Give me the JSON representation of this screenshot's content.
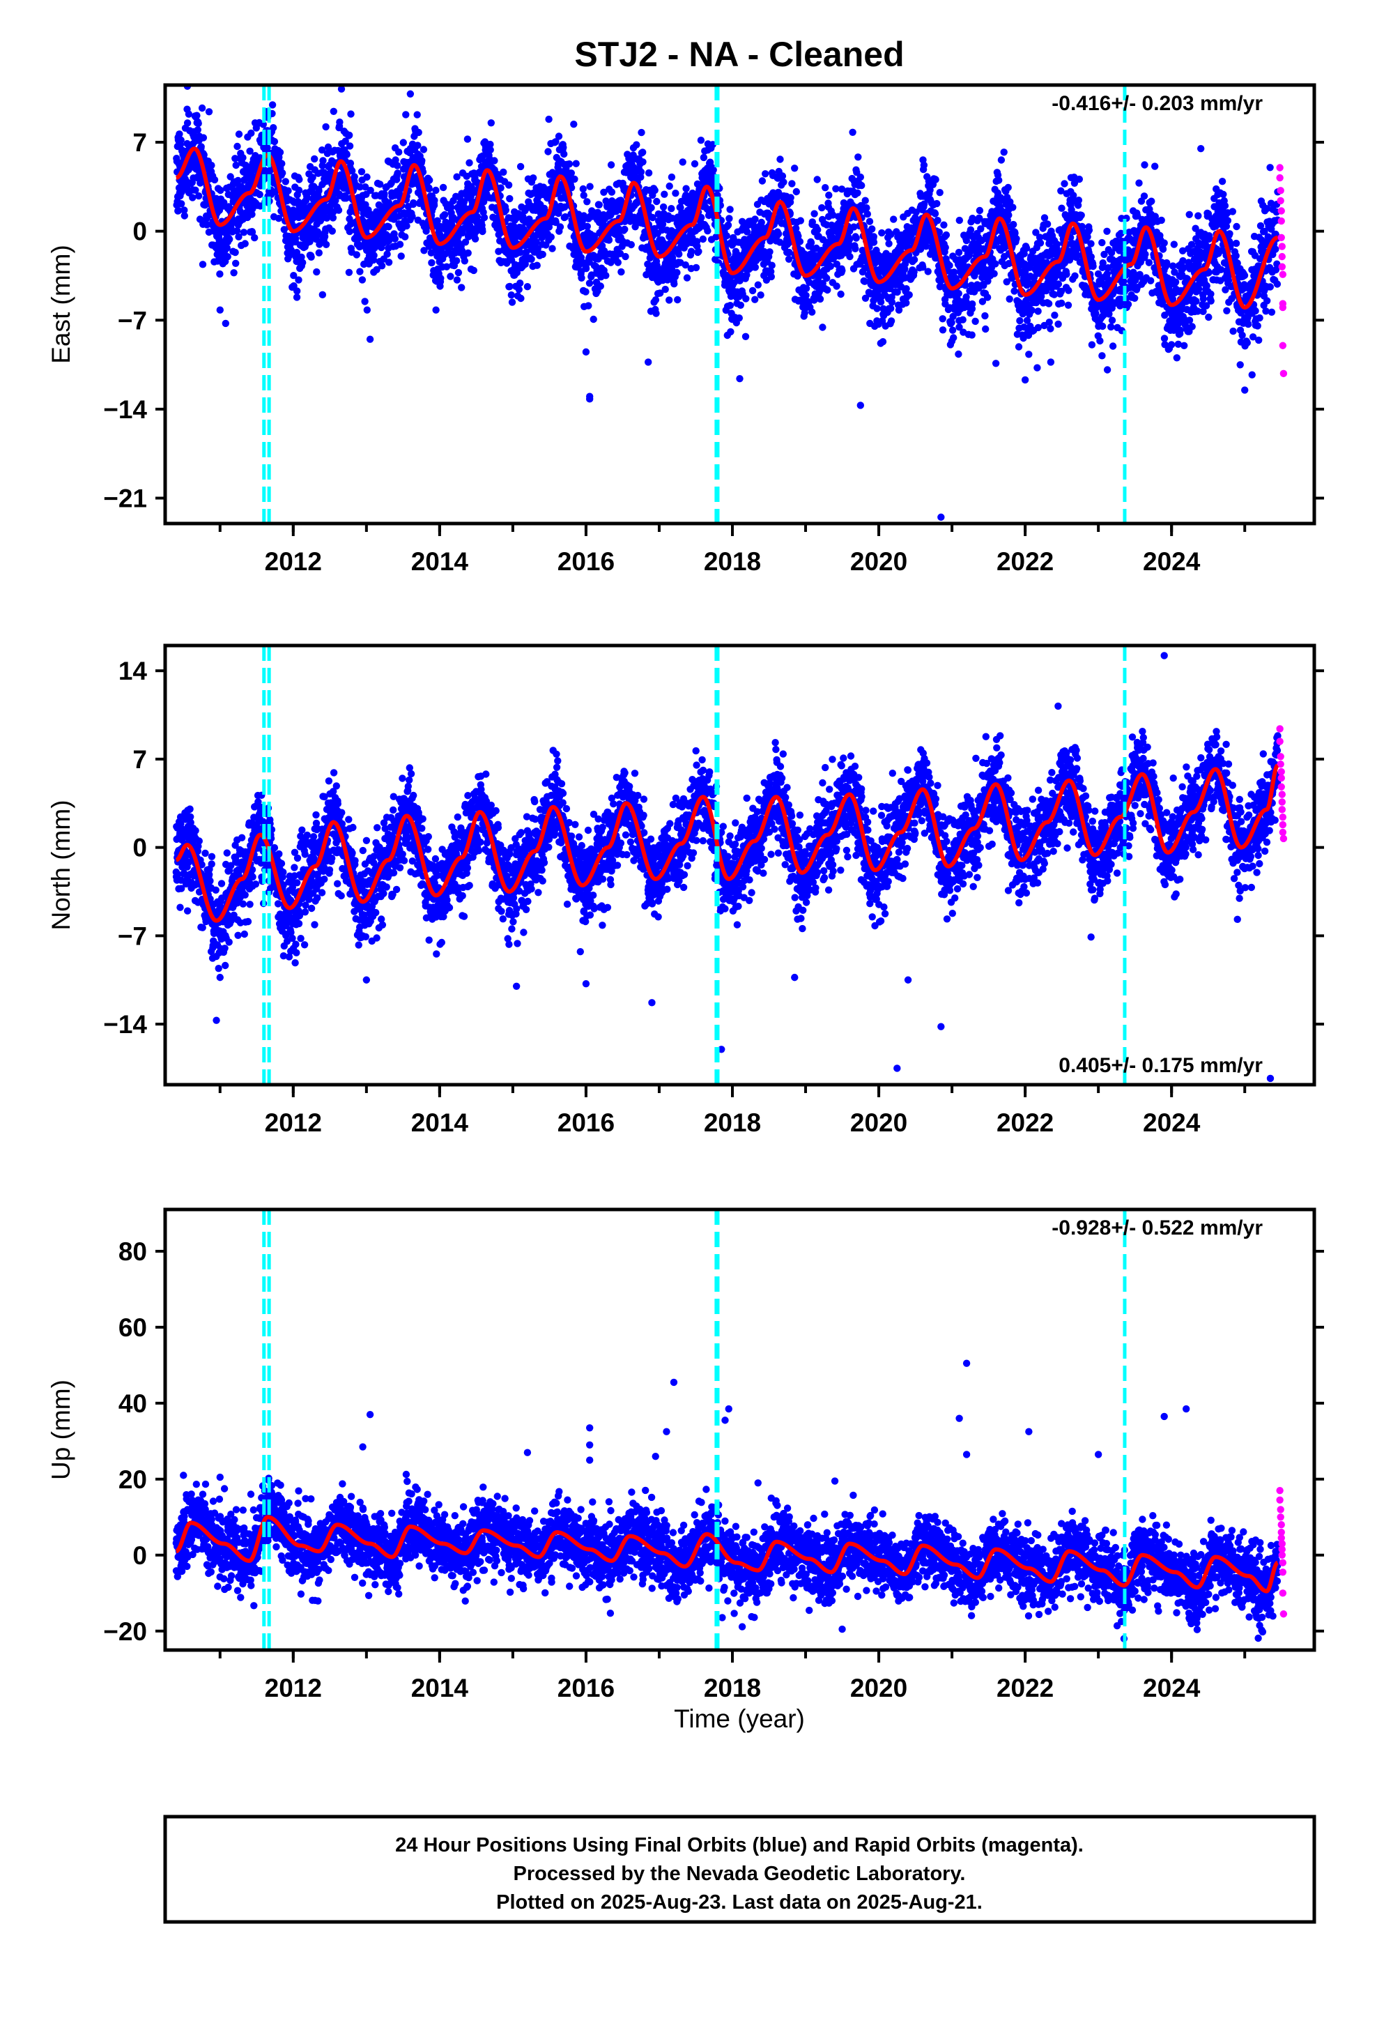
{
  "title": "STJ2  - NA - Cleaned",
  "xlabel": "Time (year)",
  "x_ticks": [
    2012,
    2014,
    2016,
    2018,
    2020,
    2022,
    2024
  ],
  "x_range": [
    2010.25,
    2025.95
  ],
  "colors": {
    "final_orbits": "#0000ff",
    "rapid_orbits": "#ff00ff",
    "model": "#ff0000",
    "offsets": "#00ffff",
    "frame": "#000000"
  },
  "footer": {
    "line1": "24 Hour Positions Using Final Orbits (blue) and Rapid Orbits (magenta).",
    "line2": "Processed by the Nevada Geodetic Laboratory.",
    "line3": "Plotted on 2025-Aug-23. Last data on 2025-Aug-21."
  },
  "chart_data": [
    {
      "type": "scatter",
      "component": "east",
      "ylabel": "East (mm)",
      "y_ticks": [
        7,
        0,
        -7,
        -14,
        -21
      ],
      "ylim": [
        -23,
        11.5
      ],
      "rate_label": "-0.416+/- 0.203 mm/yr",
      "rate_position": "top-right",
      "grid": false,
      "offset_lines": [
        2011.6,
        2011.67,
        2017.78,
        2017.8,
        2023.36
      ],
      "series": [
        {
          "name": "Final Orbits",
          "x_start": 2010.4,
          "x_end": 2025.45,
          "model_knots": [
            [
              2010.4,
              4.2
            ],
            [
              2010.65,
              6.5
            ],
            [
              2011.0,
              0.5
            ],
            [
              2011.4,
              3.0
            ],
            [
              2011.65,
              6.0
            ],
            [
              2012.0,
              0.0
            ],
            [
              2012.45,
              2.5
            ],
            [
              2012.65,
              5.5
            ],
            [
              2013.0,
              -0.5
            ],
            [
              2013.45,
              2.0
            ],
            [
              2013.65,
              5.2
            ],
            [
              2014.0,
              -1.0
            ],
            [
              2014.45,
              1.5
            ],
            [
              2014.65,
              4.8
            ],
            [
              2015.0,
              -1.3
            ],
            [
              2015.45,
              1.0
            ],
            [
              2015.65,
              4.3
            ],
            [
              2016.0,
              -1.6
            ],
            [
              2016.45,
              0.8
            ],
            [
              2016.65,
              3.8
            ],
            [
              2017.0,
              -2.0
            ],
            [
              2017.45,
              0.5
            ],
            [
              2017.65,
              3.5
            ],
            [
              2018.0,
              -3.3
            ],
            [
              2018.45,
              -0.5
            ],
            [
              2018.65,
              2.3
            ],
            [
              2019.0,
              -3.5
            ],
            [
              2019.45,
              -1.0
            ],
            [
              2019.65,
              1.8
            ],
            [
              2020.0,
              -4.0
            ],
            [
              2020.45,
              -1.5
            ],
            [
              2020.65,
              1.3
            ],
            [
              2021.0,
              -4.5
            ],
            [
              2021.45,
              -2.0
            ],
            [
              2021.65,
              1.0
            ],
            [
              2022.0,
              -5.0
            ],
            [
              2022.45,
              -2.4
            ],
            [
              2022.65,
              0.6
            ],
            [
              2023.0,
              -5.4
            ],
            [
              2023.45,
              -2.6
            ],
            [
              2023.65,
              0.3
            ],
            [
              2024.0,
              -5.8
            ],
            [
              2024.45,
              -3.0
            ],
            [
              2024.65,
              0.0
            ],
            [
              2025.0,
              -6.0
            ],
            [
              2025.45,
              -0.5
            ]
          ],
          "scatter_sd": 1.9
        },
        {
          "name": "Rapid Orbits",
          "points": [
            [
              2025.48,
              5.0
            ],
            [
              2025.48,
              4.2
            ],
            [
              2025.49,
              3.2
            ],
            [
              2025.49,
              2.4
            ],
            [
              2025.5,
              1.6
            ],
            [
              2025.5,
              0.8
            ],
            [
              2025.5,
              -0.5
            ],
            [
              2025.51,
              -1.2
            ],
            [
              2025.51,
              -2.0
            ],
            [
              2025.51,
              -2.8
            ],
            [
              2025.52,
              -3.4
            ],
            [
              2025.52,
              -5.7
            ],
            [
              2025.52,
              -6.0
            ],
            [
              2025.52,
              -9.0
            ],
            [
              2025.53,
              -11.2
            ]
          ]
        }
      ],
      "outliers": [
        [
          2010.55,
          9.6
        ],
        [
          2010.85,
          9.4
        ],
        [
          2011.0,
          -6.2
        ],
        [
          2012.05,
          -5.2
        ],
        [
          2012.4,
          -5.0
        ],
        [
          2013.05,
          -8.5
        ],
        [
          2013.6,
          10.8
        ],
        [
          2013.95,
          -6.2
        ],
        [
          2016.0,
          -9.5
        ],
        [
          2016.05,
          -13.0
        ],
        [
          2016.05,
          -13.2
        ],
        [
          2016.85,
          -10.3
        ],
        [
          2018.1,
          -11.6
        ],
        [
          2019.75,
          -13.7
        ],
        [
          2020.85,
          -22.5
        ],
        [
          2021.6,
          -10.4
        ],
        [
          2022.0,
          -11.7
        ],
        [
          2022.35,
          -10.3
        ],
        [
          2023.05,
          -9.8
        ],
        [
          2024.4,
          6.5
        ],
        [
          2025.0,
          -12.5
        ],
        [
          2025.1,
          -11.3
        ]
      ]
    },
    {
      "type": "scatter",
      "component": "north",
      "ylabel": "North (mm)",
      "y_ticks": [
        14,
        7,
        0,
        -7,
        -14
      ],
      "ylim": [
        -18.8,
        16.0
      ],
      "rate_label": "0.405+/- 0.175 mm/yr",
      "rate_position": "bottom-right",
      "grid": false,
      "offset_lines": [
        2011.6,
        2011.67,
        2017.78,
        2017.8,
        2023.36
      ],
      "series": [
        {
          "name": "Final Orbits",
          "x_start": 2010.4,
          "x_end": 2025.45,
          "model_knots": [
            [
              2010.4,
              -1.0
            ],
            [
              2010.55,
              0.2
            ],
            [
              2010.95,
              -5.8
            ],
            [
              2011.3,
              -2.5
            ],
            [
              2011.55,
              1.0
            ],
            [
              2011.95,
              -4.8
            ],
            [
              2012.3,
              -1.5
            ],
            [
              2012.55,
              2.0
            ],
            [
              2012.95,
              -4.3
            ],
            [
              2013.3,
              -1.0
            ],
            [
              2013.55,
              2.5
            ],
            [
              2013.95,
              -3.8
            ],
            [
              2014.3,
              -0.8
            ],
            [
              2014.55,
              2.8
            ],
            [
              2014.95,
              -3.5
            ],
            [
              2015.3,
              -0.3
            ],
            [
              2015.55,
              3.2
            ],
            [
              2015.95,
              -3.0
            ],
            [
              2016.3,
              0.0
            ],
            [
              2016.55,
              3.5
            ],
            [
              2016.95,
              -2.5
            ],
            [
              2017.3,
              0.3
            ],
            [
              2017.6,
              4.0
            ],
            [
              2017.95,
              -2.5
            ],
            [
              2018.3,
              0.5
            ],
            [
              2018.6,
              4.0
            ],
            [
              2018.95,
              -2.0
            ],
            [
              2019.3,
              1.0
            ],
            [
              2019.6,
              4.2
            ],
            [
              2019.95,
              -1.8
            ],
            [
              2020.3,
              1.2
            ],
            [
              2020.6,
              4.6
            ],
            [
              2020.95,
              -1.5
            ],
            [
              2021.3,
              1.5
            ],
            [
              2021.6,
              5.0
            ],
            [
              2021.95,
              -1.0
            ],
            [
              2022.3,
              2.0
            ],
            [
              2022.6,
              5.3
            ],
            [
              2022.95,
              -0.6
            ],
            [
              2023.3,
              2.4
            ],
            [
              2023.6,
              5.8
            ],
            [
              2023.95,
              -0.4
            ],
            [
              2024.3,
              2.8
            ],
            [
              2024.6,
              6.2
            ],
            [
              2024.95,
              0.0
            ],
            [
              2025.3,
              3.0
            ],
            [
              2025.45,
              6.5
            ]
          ],
          "scatter_sd": 1.7
        },
        {
          "name": "Rapid Orbits",
          "points": [
            [
              2025.48,
              9.4
            ],
            [
              2025.48,
              8.4
            ],
            [
              2025.49,
              7.2
            ],
            [
              2025.49,
              6.6
            ],
            [
              2025.5,
              6.0
            ],
            [
              2025.5,
              5.5
            ],
            [
              2025.5,
              4.8
            ],
            [
              2025.51,
              4.2
            ],
            [
              2025.51,
              3.6
            ],
            [
              2025.51,
              3.0
            ],
            [
              2025.52,
              2.4
            ],
            [
              2025.52,
              1.8
            ],
            [
              2025.52,
              1.2
            ],
            [
              2025.53,
              0.7
            ]
          ]
        }
      ],
      "outliers": [
        [
          2010.95,
          -13.7
        ],
        [
          2011.0,
          -10.3
        ],
        [
          2013.0,
          -10.5
        ],
        [
          2015.05,
          -11.0
        ],
        [
          2016.0,
          -10.8
        ],
        [
          2016.9,
          -12.3
        ],
        [
          2017.85,
          -16.0
        ],
        [
          2018.85,
          -10.3
        ],
        [
          2020.25,
          -17.5
        ],
        [
          2020.4,
          -10.5
        ],
        [
          2020.85,
          -14.2
        ],
        [
          2022.45,
          11.2
        ],
        [
          2022.9,
          -7.1
        ],
        [
          2023.9,
          15.2
        ],
        [
          2024.9,
          -5.7
        ],
        [
          2025.35,
          -18.3
        ]
      ]
    },
    {
      "type": "scatter",
      "component": "up",
      "ylabel": "Up (mm)",
      "y_ticks": [
        80,
        60,
        40,
        20,
        0,
        -20
      ],
      "ylim": [
        -25,
        91
      ],
      "rate_label": "-0.928+/- 0.522 mm/yr",
      "rate_position": "top-right",
      "grid": false,
      "offset_lines": [
        2011.6,
        2011.67,
        2017.78,
        2017.8,
        2023.36
      ],
      "series": [
        {
          "name": "Final Orbits",
          "x_start": 2010.4,
          "x_end": 2025.45,
          "model_knots": [
            [
              2010.4,
              1.0
            ],
            [
              2010.6,
              8.5
            ],
            [
              2011.05,
              3.0
            ],
            [
              2011.4,
              -1.5
            ],
            [
              2011.65,
              10.0
            ],
            [
              2012.1,
              2.5
            ],
            [
              2012.35,
              1.0
            ],
            [
              2012.6,
              8.0
            ],
            [
              2013.05,
              3.0
            ],
            [
              2013.35,
              -0.5
            ],
            [
              2013.6,
              7.5
            ],
            [
              2014.05,
              3.0
            ],
            [
              2014.35,
              0.5
            ],
            [
              2014.6,
              6.5
            ],
            [
              2015.05,
              2.5
            ],
            [
              2015.35,
              -0.5
            ],
            [
              2015.6,
              6.0
            ],
            [
              2016.05,
              1.5
            ],
            [
              2016.35,
              -1.5
            ],
            [
              2016.6,
              5.0
            ],
            [
              2017.05,
              0.5
            ],
            [
              2017.35,
              -3.0
            ],
            [
              2017.65,
              5.5
            ],
            [
              2018.05,
              -2.0
            ],
            [
              2018.35,
              -4.0
            ],
            [
              2018.6,
              3.5
            ],
            [
              2019.05,
              -1.0
            ],
            [
              2019.35,
              -4.5
            ],
            [
              2019.6,
              3.0
            ],
            [
              2020.05,
              -1.5
            ],
            [
              2020.35,
              -5.0
            ],
            [
              2020.6,
              2.5
            ],
            [
              2021.05,
              -2.5
            ],
            [
              2021.35,
              -6.0
            ],
            [
              2021.6,
              1.5
            ],
            [
              2022.05,
              -3.5
            ],
            [
              2022.35,
              -7.0
            ],
            [
              2022.6,
              1.0
            ],
            [
              2023.05,
              -4.0
            ],
            [
              2023.35,
              -8.0
            ],
            [
              2023.6,
              0.0
            ],
            [
              2024.05,
              -4.5
            ],
            [
              2024.35,
              -8.5
            ],
            [
              2024.6,
              -0.5
            ],
            [
              2025.05,
              -5.5
            ],
            [
              2025.3,
              -9.5
            ],
            [
              2025.45,
              -2.0
            ]
          ],
          "scatter_sd": 4.5
        },
        {
          "name": "Rapid Orbits",
          "points": [
            [
              2025.48,
              17.0
            ],
            [
              2025.48,
              14.5
            ],
            [
              2025.49,
              12.0
            ],
            [
              2025.49,
              10.0
            ],
            [
              2025.5,
              8.0
            ],
            [
              2025.5,
              6.0
            ],
            [
              2025.5,
              4.5
            ],
            [
              2025.51,
              3.0
            ],
            [
              2025.51,
              1.5
            ],
            [
              2025.51,
              0.0
            ],
            [
              2025.52,
              -2.0
            ],
            [
              2025.52,
              -4.5
            ],
            [
              2025.52,
              -10.0
            ],
            [
              2025.53,
              -15.5
            ]
          ]
        }
      ],
      "outliers": [
        [
          2010.5,
          21.0
        ],
        [
          2011.0,
          20.5
        ],
        [
          2012.95,
          28.5
        ],
        [
          2013.05,
          37.0
        ],
        [
          2015.2,
          27.0
        ],
        [
          2016.05,
          33.5
        ],
        [
          2016.05,
          29.0
        ],
        [
          2016.05,
          25.0
        ],
        [
          2016.95,
          26.0
        ],
        [
          2017.1,
          32.5
        ],
        [
          2017.2,
          45.5
        ],
        [
          2017.9,
          35.5
        ],
        [
          2017.95,
          38.5
        ],
        [
          2018.35,
          19.0
        ],
        [
          2019.4,
          19.5
        ],
        [
          2021.1,
          36.0
        ],
        [
          2021.2,
          50.5
        ],
        [
          2021.2,
          26.5
        ],
        [
          2022.05,
          32.5
        ],
        [
          2023.0,
          26.5
        ],
        [
          2023.9,
          36.5
        ],
        [
          2024.2,
          38.5
        ],
        [
          2023.35,
          -22.0
        ],
        [
          2019.5,
          -19.5
        ]
      ]
    }
  ]
}
